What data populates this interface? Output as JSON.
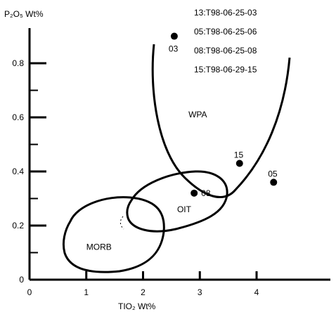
{
  "chart_data": {
    "type": "scatter",
    "title": "",
    "xlabel": "TIO₂  Wt%",
    "ylabel": "P₂O₅  Wt%",
    "xlim": [
      0,
      5.3
    ],
    "ylim": [
      0,
      0.93
    ],
    "x_ticks": [
      0,
      1,
      2,
      3,
      4
    ],
    "y_ticks": [
      0,
      0.2,
      0.4,
      0.6,
      0.8
    ],
    "x_tick_labels": [
      "0",
      "1",
      "2",
      "3",
      "4"
    ],
    "y_tick_labels": [
      "0",
      "0.2",
      "0.4",
      "0.6",
      "0.8"
    ],
    "grid": false,
    "legend_position": "top-right",
    "legend": [
      "13:T98-06-25-03",
      "05:T98-06-25-06",
      "08:T98-06-25-08",
      "15:T98-06-29-15"
    ],
    "points": [
      {
        "label": "03",
        "x": 2.55,
        "y": 0.9
      },
      {
        "label": "08",
        "x": 2.9,
        "y": 0.32
      },
      {
        "label": "15",
        "x": 3.7,
        "y": 0.43
      },
      {
        "label": "05",
        "x": 4.3,
        "y": 0.36
      }
    ],
    "fields": [
      {
        "name": "WPA",
        "label_at": [
          2.8,
          0.6
        ]
      },
      {
        "name": "OIT",
        "label_at": [
          2.6,
          0.25
        ]
      },
      {
        "name": "MORB",
        "label_at": [
          1.0,
          0.11
        ]
      }
    ]
  }
}
